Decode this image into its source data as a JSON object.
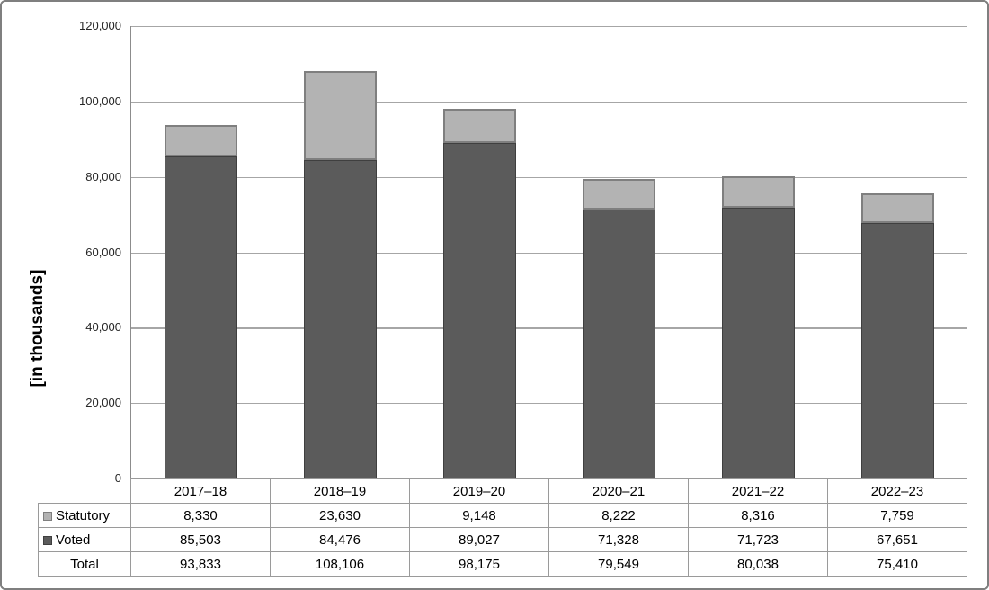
{
  "chart_data": {
    "type": "bar",
    "stacked": true,
    "title": "",
    "xlabel": "",
    "ylabel": "[in thousands]",
    "ylim": [
      0,
      120000
    ],
    "ytick_step": 20000,
    "ytick_labels": [
      "0",
      "20,000",
      "40,000",
      "60,000",
      "80,000",
      "100,000",
      "120,000"
    ],
    "grid": true,
    "legend_position": "table-row-labels",
    "categories": [
      "2017–18",
      "2018–19",
      "2019–20",
      "2020–21",
      "2021–22",
      "2022–23"
    ],
    "series": [
      {
        "name": "Statutory",
        "values": [
          8330,
          23630,
          9148,
          8222,
          8316,
          7759
        ],
        "color": "#b3b3b3",
        "border_color": "#7f7f7f"
      },
      {
        "name": "Voted",
        "values": [
          85503,
          84476,
          89027,
          71328,
          71723,
          67651
        ],
        "color": "#5b5b5b",
        "border_color": "#3f3f3f"
      }
    ],
    "totals": [
      93833,
      108106,
      98175,
      79549,
      80038,
      75410
    ]
  },
  "table": {
    "row_labels": [
      "Statutory",
      "Voted",
      "Total"
    ],
    "rows": [
      [
        "8,330",
        "23,630",
        "9,148",
        "8,222",
        "8,316",
        "7,759"
      ],
      [
        "85,503",
        "84,476",
        "89,027",
        "71,328",
        "71,723",
        "67,651"
      ],
      [
        "93,833",
        "108,106",
        "98,175",
        "79,549",
        "80,038",
        "75,410"
      ]
    ]
  },
  "colors": {
    "statutory_fill": "#b3b3b3",
    "statutory_border": "#7f7f7f",
    "voted_fill": "#5b5b5b",
    "voted_border": "#3f3f3f",
    "gridline": "#a6a6a6",
    "axis_line": "#8c8c8c",
    "table_border": "#9a9a9a",
    "frame_border": "#7f7f7f"
  }
}
